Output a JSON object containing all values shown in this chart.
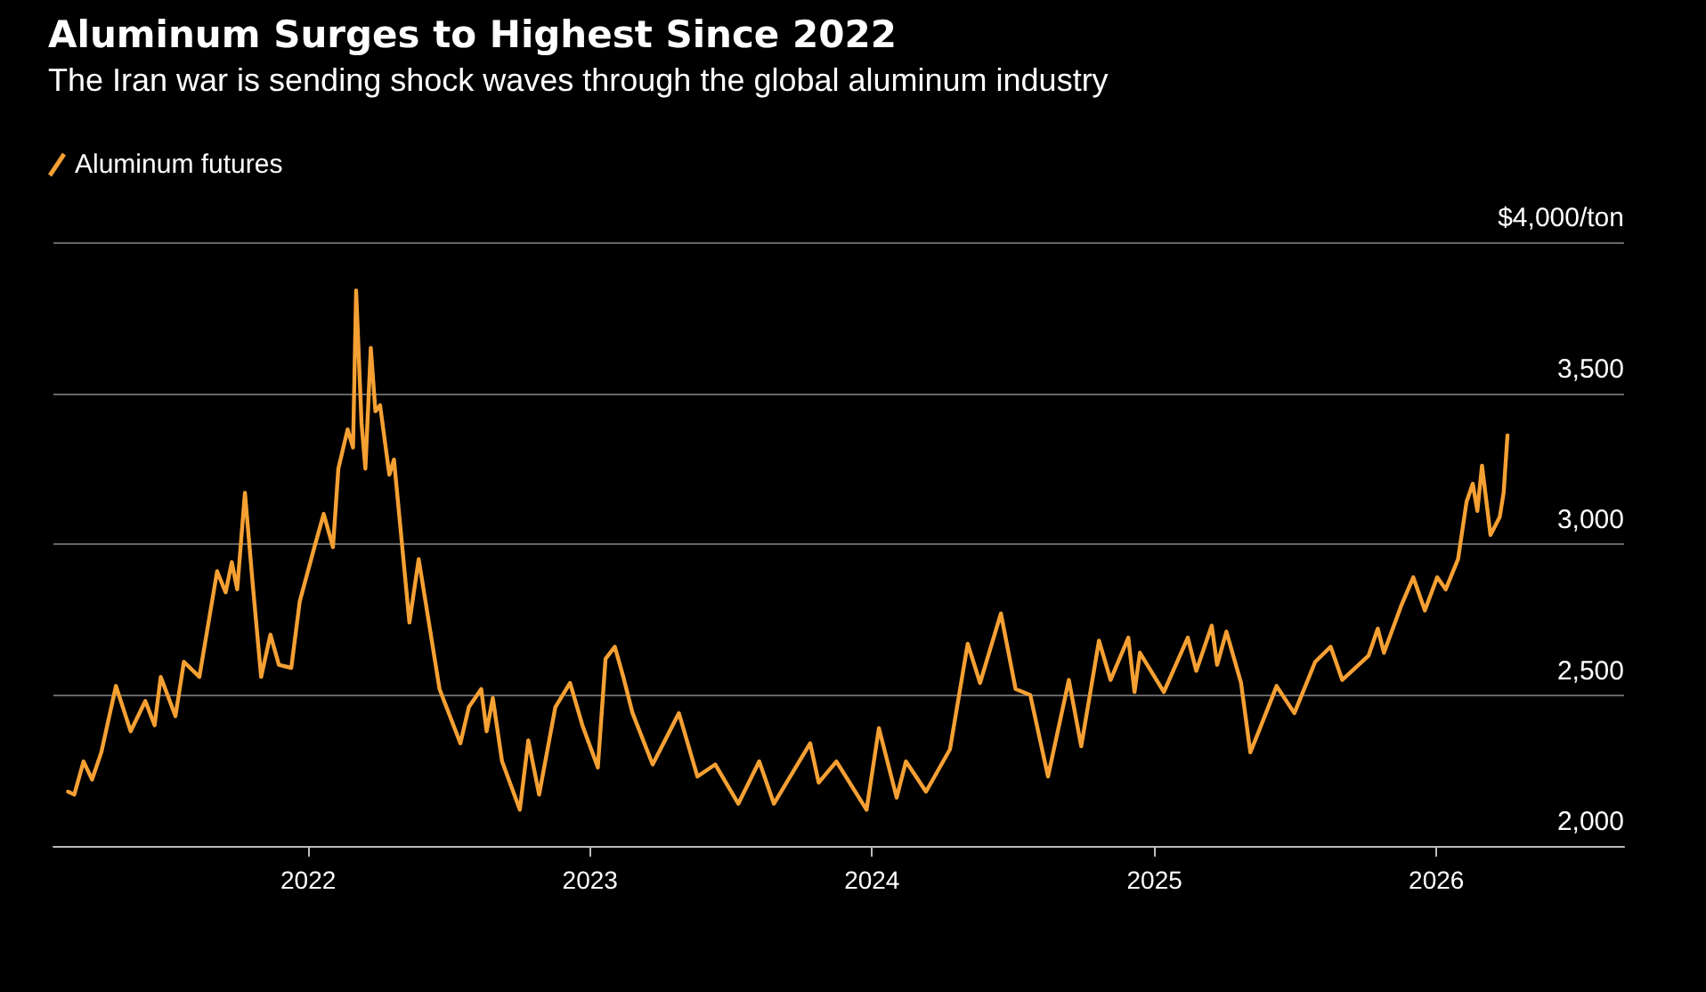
{
  "chart_data": {
    "type": "line",
    "title": "Aluminum Surges to Highest Since 2022",
    "subtitle": "The Iran war is sending shock waves through the global aluminum industry",
    "xlim": [
      "2021-02-05",
      "2026-09-01"
    ],
    "xticks": [
      {
        "value": "2022-01-01",
        "label": "2022"
      },
      {
        "value": "2023-01-01",
        "label": "2023"
      },
      {
        "value": "2024-01-01",
        "label": "2024"
      },
      {
        "value": "2025-01-01",
        "label": "2025"
      },
      {
        "value": "2026-01-01",
        "label": "2026"
      }
    ],
    "ylim": [
      2000,
      4000
    ],
    "yticks": [
      {
        "value": 2000,
        "label": "2,000"
      },
      {
        "value": 2500,
        "label": "2,500"
      },
      {
        "value": 3000,
        "label": "3,000"
      },
      {
        "value": 3500,
        "label": "3,500"
      },
      {
        "value": 4000,
        "label": "$4,000/ton"
      }
    ],
    "grid": "y",
    "legend": "top left",
    "marker": "none",
    "line_style": "solid",
    "series": [
      {
        "name": "Aluminum futures",
        "color": "#f5a033",
        "x": [
          "2021-02-24",
          "2021-03-04",
          "2021-03-16",
          "2021-03-27",
          "2021-04-08",
          "2021-04-27",
          "2021-05-16",
          "2021-06-04",
          "2021-06-16",
          "2021-06-24",
          "2021-07-13",
          "2021-07-24",
          "2021-08-13",
          "2021-09-05",
          "2021-09-16",
          "2021-09-24",
          "2021-10-01",
          "2021-10-11",
          "2021-10-21",
          "2021-11-01",
          "2021-11-13",
          "2021-11-24",
          "2021-12-10",
          "2021-12-21",
          "2022-01-09",
          "2022-01-21",
          "2022-02-02",
          "2022-02-09",
          "2022-02-21",
          "2022-02-28",
          "2022-03-04",
          "2022-03-11",
          "2022-03-16",
          "2022-03-23",
          "2022-03-29",
          "2022-04-04",
          "2022-04-16",
          "2022-04-22",
          "2022-05-12",
          "2022-05-24",
          "2022-06-05",
          "2022-06-20",
          "2022-07-17",
          "2022-07-28",
          "2022-08-13",
          "2022-08-20",
          "2022-08-28",
          "2022-09-09",
          "2022-10-02",
          "2022-10-13",
          "2022-10-27",
          "2022-11-17",
          "2022-12-06",
          "2022-12-22",
          "2023-01-11",
          "2023-01-21",
          "2023-02-02",
          "2023-02-13",
          "2023-02-25",
          "2023-03-23",
          "2023-04-26",
          "2023-05-20",
          "2023-06-12",
          "2023-07-12",
          "2023-08-08",
          "2023-08-27",
          "2023-10-13",
          "2023-10-24",
          "2023-11-16",
          "2023-12-25",
          "2024-01-10",
          "2024-02-02",
          "2024-02-14",
          "2024-03-11",
          "2024-04-11",
          "2024-05-04",
          "2024-05-20",
          "2024-06-16",
          "2024-07-05",
          "2024-07-24",
          "2024-08-16",
          "2024-09-12",
          "2024-09-28",
          "2024-10-21",
          "2024-11-05",
          "2024-11-28",
          "2024-12-06",
          "2024-12-13",
          "2025-01-13",
          "2025-02-13",
          "2025-02-24",
          "2025-03-16",
          "2025-03-23",
          "2025-04-04",
          "2025-04-23",
          "2025-05-05",
          "2025-05-16",
          "2025-06-08",
          "2025-07-01",
          "2025-07-28",
          "2025-08-17",
          "2025-09-01",
          "2025-10-05",
          "2025-10-17",
          "2025-10-25",
          "2025-11-17",
          "2025-12-02",
          "2025-12-17",
          "2026-01-02",
          "2026-01-13",
          "2026-01-29",
          "2026-02-09",
          "2026-02-17",
          "2026-02-23",
          "2026-03-01",
          "2026-03-12",
          "2026-03-24",
          "2026-03-29",
          "2026-04-03"
        ],
        "values": [
          2180,
          2170,
          2280,
          2220,
          2310,
          2530,
          2380,
          2480,
          2400,
          2560,
          2430,
          2610,
          2560,
          2910,
          2840,
          2940,
          2850,
          3170,
          2870,
          2560,
          2700,
          2600,
          2590,
          2810,
          2990,
          3100,
          2990,
          3250,
          3380,
          3320,
          3840,
          3400,
          3250,
          3650,
          3440,
          3460,
          3230,
          3280,
          2740,
          2950,
          2760,
          2520,
          2340,
          2460,
          2520,
          2380,
          2490,
          2280,
          2120,
          2350,
          2170,
          2460,
          2540,
          2400,
          2260,
          2620,
          2660,
          2560,
          2440,
          2270,
          2440,
          2230,
          2270,
          2140,
          2280,
          2140,
          2340,
          2210,
          2280,
          2120,
          2390,
          2160,
          2280,
          2180,
          2320,
          2670,
          2540,
          2770,
          2520,
          2500,
          2230,
          2550,
          2330,
          2680,
          2550,
          2690,
          2510,
          2640,
          2510,
          2690,
          2580,
          2730,
          2600,
          2710,
          2540,
          2310,
          2380,
          2530,
          2440,
          2610,
          2660,
          2550,
          2630,
          2720,
          2640,
          2800,
          2890,
          2780,
          2890,
          2850,
          2950,
          3140,
          3200,
          3110,
          3260,
          3030,
          3090,
          3170,
          3360
        ]
      }
    ]
  }
}
